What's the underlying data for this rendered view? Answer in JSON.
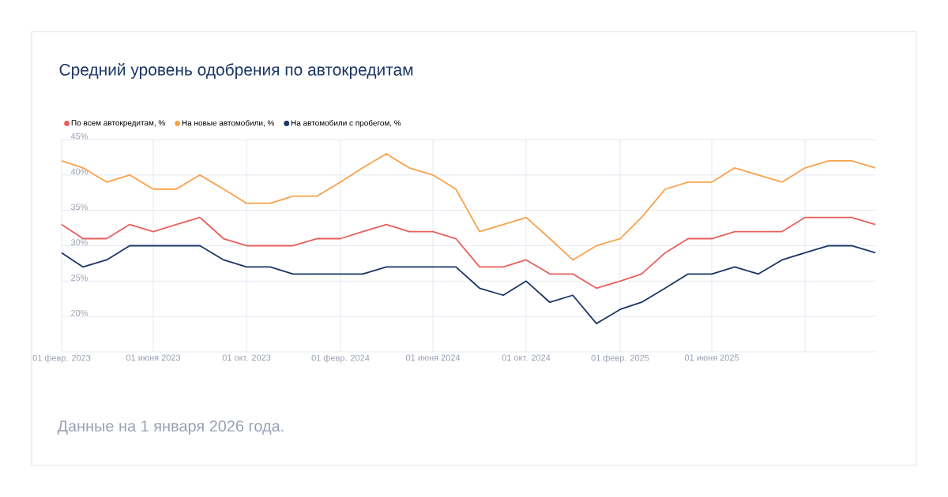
{
  "chart_data": {
    "type": "line",
    "title": "Средний уровень одобрения по автокредитам",
    "annotations": [
      "Данные на 1 января 2026 года."
    ],
    "x": [
      "2023-02",
      "2023-03",
      "2023-04",
      "2023-05",
      "2023-06",
      "2023-07",
      "2023-08",
      "2023-09",
      "2023-10",
      "2023-11",
      "2023-12",
      "2024-01",
      "2024-02",
      "2024-03",
      "2024-04",
      "2024-05",
      "2024-06",
      "2024-07",
      "2024-08",
      "2024-09",
      "2024-10",
      "2024-11",
      "2024-12",
      "2025-01",
      "2025-02",
      "2025-03",
      "2025-04",
      "2025-05",
      "2025-06",
      "2025-07",
      "2025-08",
      "2025-09",
      "2025-10",
      "2025-11",
      "2025-12",
      "2026-01"
    ],
    "series": [
      {
        "name": "По всем автокредитам, %",
        "color": "#e8605a",
        "values": [
          33,
          31,
          31,
          33,
          32,
          33,
          34,
          31,
          30,
          30,
          30,
          31,
          31,
          32,
          33,
          32,
          32,
          31,
          27,
          27,
          28,
          26,
          26,
          24,
          25,
          26,
          29,
          31,
          31,
          32,
          32,
          32,
          34,
          34,
          34,
          33
        ]
      },
      {
        "name": "На новые автомобили, %",
        "color": "#f9a24b",
        "values": [
          42,
          41,
          39,
          40,
          38,
          38,
          40,
          38,
          36,
          36,
          37,
          37,
          39,
          41,
          43,
          41,
          40,
          38,
          32,
          33,
          34,
          31,
          28,
          30,
          31,
          34,
          38,
          39,
          39,
          41,
          40,
          39,
          41,
          42,
          42,
          41
        ]
      },
      {
        "name": "На автомобили с пробегом, %",
        "color": "#1b3566",
        "values": [
          29,
          27,
          28,
          30,
          30,
          30,
          30,
          28,
          27,
          27,
          26,
          26,
          26,
          26,
          27,
          27,
          27,
          27,
          24,
          23,
          25,
          22,
          23,
          19,
          21,
          22,
          24,
          26,
          26,
          27,
          26,
          28,
          29,
          30,
          30,
          29
        ]
      }
    ],
    "xlim": [
      "2023-02",
      "2026-01"
    ],
    "xticks": [
      {
        "value": "2023-02",
        "label": "01 февр. 2023"
      },
      {
        "value": "2023-06",
        "label": "01 июня 2023"
      },
      {
        "value": "2023-10",
        "label": "01 окт. 2023"
      },
      {
        "value": "2024-02",
        "label": "01 февр. 2024"
      },
      {
        "value": "2024-06",
        "label": "01 июня 2024"
      },
      {
        "value": "2024-10",
        "label": "01 окт. 2024"
      },
      {
        "value": "2025-02",
        "label": "01 февр. 2025"
      },
      {
        "value": "2025-06",
        "label": "01 июня 2025"
      },
      {
        "value": "2025-10",
        "label": null
      }
    ],
    "ylim": [
      15,
      45
    ],
    "yticks": [
      {
        "value": 15,
        "label": null
      },
      {
        "value": 20,
        "label": "20%"
      },
      {
        "value": 25,
        "label": "25%"
      },
      {
        "value": 30,
        "label": "30%"
      },
      {
        "value": 35,
        "label": "35%"
      },
      {
        "value": 40,
        "label": "40%"
      },
      {
        "value": 45,
        "label": "45%"
      }
    ],
    "grid": true,
    "legend": "top left"
  }
}
